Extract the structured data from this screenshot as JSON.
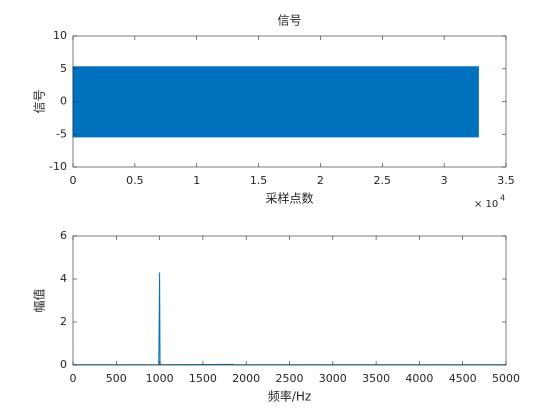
{
  "chart_data": [
    {
      "type": "band",
      "title": "信号",
      "ylabel": "信号",
      "xlabel": "采样点数",
      "x_multiplier": "× 10",
      "x_multiplier_exponent": "4",
      "x": [
        0,
        3.2768
      ],
      "upper": [
        5.3,
        5.3
      ],
      "lower": [
        -5.4,
        -5.4
      ],
      "color": "#0072bd",
      "xlim": [
        0,
        3.5
      ],
      "xticks": [
        0,
        0.5,
        1,
        1.5,
        2,
        2.5,
        3,
        3.5
      ],
      "ylim": [
        -10,
        10
      ],
      "yticks": [
        -10,
        -5,
        0,
        5,
        10
      ]
    },
    {
      "type": "line",
      "ylabel": "幅值",
      "xlabel": "频率/Hz",
      "x": [
        0,
        990,
        1000,
        1005,
        1010,
        1850,
        1855,
        5000
      ],
      "values": [
        0.01,
        0.01,
        4.3,
        0.15,
        0.01,
        0.03,
        0.01,
        0.01
      ],
      "color": "#0072bd",
      "xlim": [
        0,
        5000
      ],
      "xticks": [
        0,
        500,
        1000,
        1500,
        2000,
        2500,
        3000,
        3500,
        4000,
        4500,
        5000
      ],
      "ylim": [
        0,
        6
      ],
      "yticks": [
        0,
        2,
        4,
        6
      ]
    }
  ]
}
